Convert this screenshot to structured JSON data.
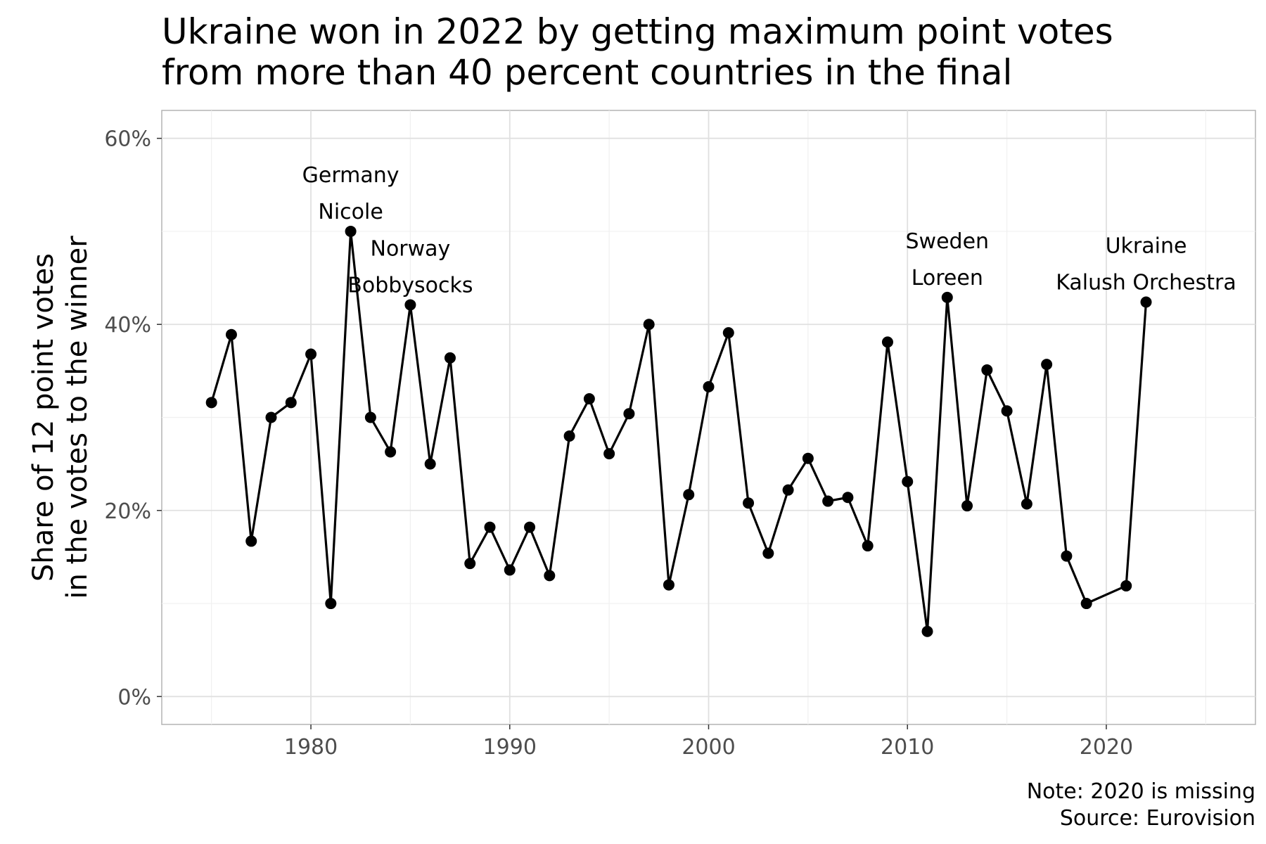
{
  "chart_data": {
    "type": "line",
    "title_lines": [
      "Ukraine won in 2022 by getting maximum point votes",
      "from more than 40 percent countries in the final"
    ],
    "xlabel": "",
    "ylabel_lines": [
      "Share of 12 point votes",
      "in the votes to the winner"
    ],
    "xlim": [
      1972.5,
      2027.5
    ],
    "ylim": [
      -0.03,
      0.63
    ],
    "x_ticks": [
      1980,
      1990,
      2000,
      2010,
      2020
    ],
    "y_ticks": [
      0,
      0.2,
      0.4,
      0.6
    ],
    "y_tick_labels": [
      "0%",
      "20%",
      "40%",
      "60%"
    ],
    "grid": true,
    "series": [
      {
        "x": [
          1975,
          1976,
          1977,
          1978,
          1979,
          1980,
          1981,
          1982,
          1983,
          1984,
          1985,
          1986,
          1987,
          1988,
          1989,
          1990,
          1991,
          1992,
          1993,
          1994,
          1995,
          1996,
          1997,
          1998,
          1999,
          2000,
          2001,
          2002,
          2003,
          2004,
          2005,
          2006,
          2007,
          2008,
          2009,
          2010,
          2011,
          2012,
          2013,
          2014,
          2015,
          2016,
          2017,
          2018,
          2019,
          2021,
          2022
        ],
        "y": [
          0.316,
          0.389,
          0.167,
          0.3,
          0.316,
          0.368,
          0.1,
          0.5,
          0.3,
          0.263,
          0.421,
          0.25,
          0.364,
          0.143,
          0.182,
          0.136,
          0.182,
          0.13,
          0.28,
          0.32,
          0.261,
          0.304,
          0.4,
          0.12,
          0.217,
          0.333,
          0.391,
          0.208,
          0.154,
          0.222,
          0.256,
          0.21,
          0.214,
          0.162,
          0.381,
          0.231,
          0.07,
          0.429,
          0.205,
          0.351,
          0.307,
          0.207,
          0.357,
          0.151,
          0.1,
          0.119,
          0.424
        ]
      }
    ],
    "annotations": [
      {
        "x": 1982,
        "y": 0.5,
        "lines": [
          "Germany",
          "Nicole"
        ]
      },
      {
        "x": 1985,
        "y": 0.421,
        "lines": [
          "Norway",
          "Bobbysocks"
        ]
      },
      {
        "x": 2012,
        "y": 0.429,
        "lines": [
          "Sweden",
          "Loreen"
        ]
      },
      {
        "x": 2022,
        "y": 0.424,
        "lines": [
          "Ukraine",
          "Kalush Orchestra"
        ]
      }
    ],
    "caption_lines": [
      "Note: 2020 is missing",
      "Source: Eurovision"
    ]
  }
}
